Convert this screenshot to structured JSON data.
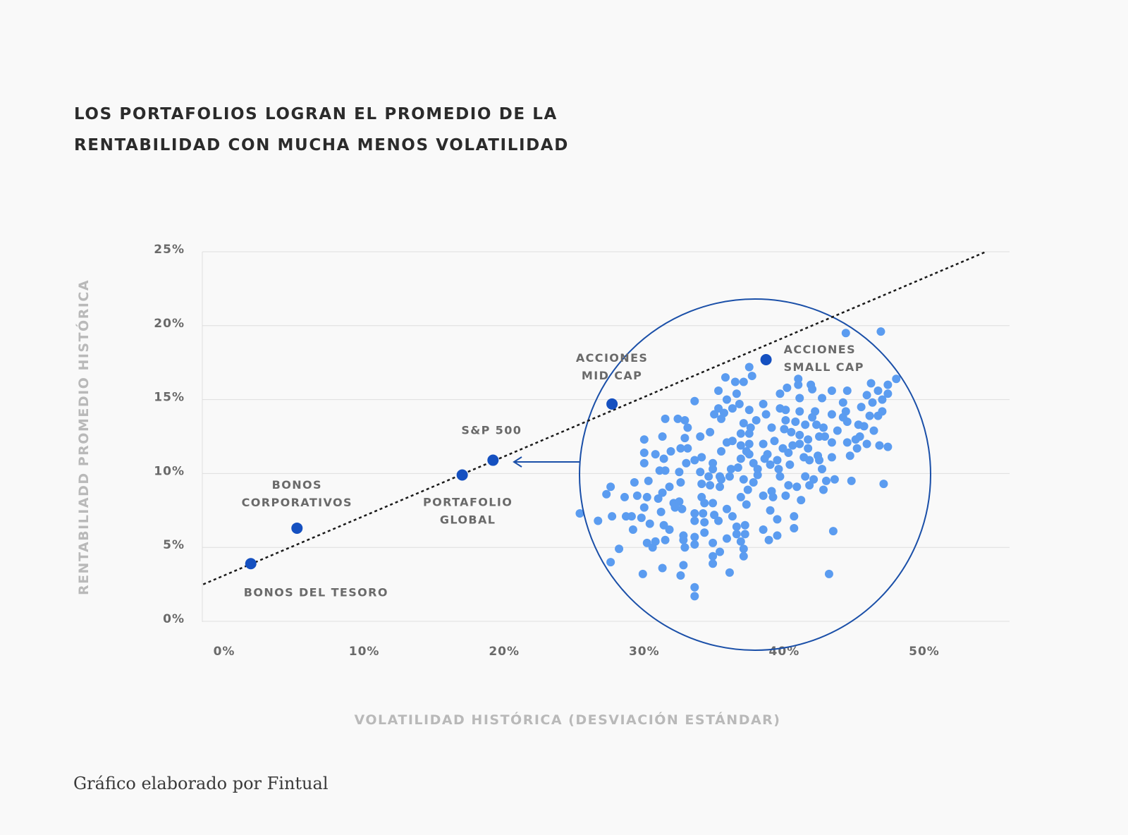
{
  "title": {
    "line1": "LOS PORTAFOLIOS LOGRAN EL PROMEDIO DE LA",
    "line2": "RENTABILIDAD CON MUCHA MENOS VOLATILIDAD"
  },
  "footer": "Gráfico elaborado por Fintual",
  "colors": {
    "background": "#f9f9f9",
    "highlight_points": "#1550c0",
    "cloud_points": "#5b9cf0",
    "circle": "#1a4fa8",
    "trend_line": "#1a1a1a",
    "grid": "#dedede"
  },
  "chart_data": {
    "type": "scatter",
    "title": "LOS PORTAFOLIOS LOGRAN EL PROMEDIO DE LA RENTABILIDAD CON MUCHA MENOS VOLATILIDAD",
    "xlabel": "VOLATILIDAD HISTÓRICA (DESVIACIÓN ESTÁNDAR)",
    "ylabel": "RENTABILIADD PROMEDIO HISTÓRICA",
    "xlim": [
      0,
      50
    ],
    "ylim": [
      0,
      25
    ],
    "x_ticks": [
      "0%",
      "10%",
      "20%",
      "30%",
      "40%",
      "50%"
    ],
    "y_ticks": [
      "0%",
      "5%",
      "10%",
      "15%",
      "20%",
      "25%"
    ],
    "grid": "horizontal",
    "labeled_points": [
      {
        "label_lines": [
          "BONOS DEL TESORO"
        ],
        "x": 1.9,
        "y": 3.9
      },
      {
        "label_lines": [
          "BONOS",
          "CORPORATIVOS"
        ],
        "x": 5.2,
        "y": 6.3
      },
      {
        "label_lines": [
          "PORTAFOLIO",
          "GLOBAL"
        ],
        "x": 17.0,
        "y": 9.9
      },
      {
        "label_lines": [
          "S&P 500"
        ],
        "x": 19.2,
        "y": 10.9
      },
      {
        "label_lines": [
          "ACCIONES",
          "MID CAP"
        ],
        "x": 27.7,
        "y": 14.7
      },
      {
        "label_lines": [
          "ACCIONES",
          "SMALL CAP"
        ],
        "x": 38.7,
        "y": 17.7
      }
    ],
    "trend_line": [
      [
        -1.5,
        2.5
      ],
      [
        54.4,
        25.0
      ]
    ],
    "cloud_points": [
      [
        44.4,
        19.5
      ],
      [
        46.9,
        19.6
      ],
      [
        37.5,
        17.2
      ],
      [
        35.8,
        16.5
      ],
      [
        36.5,
        16.2
      ],
      [
        37.1,
        16.2
      ],
      [
        37.7,
        16.6
      ],
      [
        41.0,
        16.4
      ],
      [
        48.0,
        16.4
      ],
      [
        46.2,
        16.1
      ],
      [
        47.4,
        16.0
      ],
      [
        40.2,
        15.8
      ],
      [
        41.0,
        16.0
      ],
      [
        41.9,
        16.0
      ],
      [
        42.0,
        15.7
      ],
      [
        35.3,
        15.6
      ],
      [
        43.4,
        15.6
      ],
      [
        44.5,
        15.6
      ],
      [
        46.7,
        15.6
      ],
      [
        47.4,
        15.4
      ],
      [
        39.7,
        15.4
      ],
      [
        36.6,
        15.4
      ],
      [
        41.1,
        15.1
      ],
      [
        42.7,
        15.1
      ],
      [
        45.9,
        15.3
      ],
      [
        33.6,
        14.9
      ],
      [
        35.9,
        15.0
      ],
      [
        44.2,
        14.8
      ],
      [
        46.3,
        14.8
      ],
      [
        47.0,
        15.0
      ],
      [
        36.8,
        14.7
      ],
      [
        38.5,
        14.7
      ],
      [
        36.3,
        14.4
      ],
      [
        37.5,
        14.3
      ],
      [
        39.7,
        14.4
      ],
      [
        40.1,
        14.3
      ],
      [
        41.1,
        14.2
      ],
      [
        42.2,
        14.2
      ],
      [
        45.5,
        14.5
      ],
      [
        47.0,
        14.2
      ],
      [
        35.3,
        14.4
      ],
      [
        35.0,
        14.0
      ],
      [
        35.7,
        14.1
      ],
      [
        35.5,
        13.7
      ],
      [
        38.7,
        14.0
      ],
      [
        43.4,
        14.0
      ],
      [
        44.4,
        14.2
      ],
      [
        44.2,
        13.8
      ],
      [
        46.1,
        13.9
      ],
      [
        46.7,
        13.9
      ],
      [
        42.0,
        13.8
      ],
      [
        31.5,
        13.7
      ],
      [
        32.4,
        13.7
      ],
      [
        32.9,
        13.6
      ],
      [
        33.1,
        13.1
      ],
      [
        38.0,
        13.6
      ],
      [
        40.1,
        13.6
      ],
      [
        40.8,
        13.5
      ],
      [
        44.5,
        13.5
      ],
      [
        37.1,
        13.4
      ],
      [
        41.5,
        13.3
      ],
      [
        42.3,
        13.3
      ],
      [
        42.8,
        13.1
      ],
      [
        45.3,
        13.3
      ],
      [
        45.7,
        13.2
      ],
      [
        37.6,
        13.1
      ],
      [
        39.1,
        13.1
      ],
      [
        40.0,
        13.0
      ],
      [
        43.8,
        12.9
      ],
      [
        46.4,
        12.9
      ],
      [
        34.7,
        12.8
      ],
      [
        36.9,
        12.7
      ],
      [
        37.5,
        12.7
      ],
      [
        40.5,
        12.8
      ],
      [
        41.1,
        12.6
      ],
      [
        42.5,
        12.5
      ],
      [
        42.9,
        12.5
      ],
      [
        34.0,
        12.5
      ],
      [
        31.3,
        12.5
      ],
      [
        32.9,
        12.4
      ],
      [
        30.0,
        12.3
      ],
      [
        41.7,
        12.3
      ],
      [
        45.4,
        12.5
      ],
      [
        45.1,
        12.3
      ],
      [
        44.5,
        12.1
      ],
      [
        43.4,
        12.1
      ],
      [
        39.3,
        12.2
      ],
      [
        38.5,
        12.0
      ],
      [
        37.5,
        12.0
      ],
      [
        36.3,
        12.2
      ],
      [
        35.9,
        12.1
      ],
      [
        36.9,
        11.9
      ],
      [
        39.9,
        11.7
      ],
      [
        40.6,
        11.9
      ],
      [
        41.1,
        12.0
      ],
      [
        41.7,
        11.7
      ],
      [
        45.9,
        12.0
      ],
      [
        46.8,
        11.9
      ],
      [
        47.4,
        11.8
      ],
      [
        45.2,
        11.7
      ],
      [
        32.6,
        11.7
      ],
      [
        33.1,
        11.7
      ],
      [
        30.0,
        11.4
      ],
      [
        30.8,
        11.3
      ],
      [
        31.9,
        11.5
      ],
      [
        35.5,
        11.5
      ],
      [
        37.3,
        11.5
      ],
      [
        37.5,
        11.3
      ],
      [
        38.8,
        11.3
      ],
      [
        40.3,
        11.4
      ],
      [
        42.4,
        11.2
      ],
      [
        44.7,
        11.2
      ],
      [
        30.0,
        10.7
      ],
      [
        31.4,
        11.0
      ],
      [
        33.6,
        10.9
      ],
      [
        34.1,
        11.1
      ],
      [
        36.9,
        11.0
      ],
      [
        38.6,
        11.0
      ],
      [
        39.5,
        10.9
      ],
      [
        41.4,
        11.1
      ],
      [
        41.8,
        10.9
      ],
      [
        42.5,
        10.9
      ],
      [
        43.4,
        11.1
      ],
      [
        37.8,
        10.7
      ],
      [
        34.9,
        10.7
      ],
      [
        33.0,
        10.7
      ],
      [
        39.0,
        10.6
      ],
      [
        40.4,
        10.6
      ],
      [
        42.7,
        10.3
      ],
      [
        31.1,
        10.2
      ],
      [
        31.5,
        10.2
      ],
      [
        32.5,
        10.1
      ],
      [
        34.0,
        10.1
      ],
      [
        34.9,
        10.3
      ],
      [
        36.2,
        10.3
      ],
      [
        36.7,
        10.4
      ],
      [
        38.1,
        10.3
      ],
      [
        39.6,
        10.3
      ],
      [
        38.1,
        9.9
      ],
      [
        34.6,
        9.8
      ],
      [
        35.4,
        9.8
      ],
      [
        36.1,
        9.8
      ],
      [
        39.7,
        9.8
      ],
      [
        41.5,
        9.8
      ],
      [
        29.3,
        9.4
      ],
      [
        30.3,
        9.5
      ],
      [
        32.6,
        9.4
      ],
      [
        34.1,
        9.3
      ],
      [
        35.5,
        9.6
      ],
      [
        37.1,
        9.6
      ],
      [
        37.8,
        9.4
      ],
      [
        42.1,
        9.6
      ],
      [
        43.0,
        9.5
      ],
      [
        43.6,
        9.6
      ],
      [
        44.8,
        9.5
      ],
      [
        47.1,
        9.3
      ],
      [
        27.6,
        9.1
      ],
      [
        27.3,
        8.6
      ],
      [
        31.8,
        9.1
      ],
      [
        34.7,
        9.2
      ],
      [
        35.4,
        9.1
      ],
      [
        40.3,
        9.2
      ],
      [
        40.9,
        9.1
      ],
      [
        41.8,
        9.2
      ],
      [
        42.8,
        8.9
      ],
      [
        37.4,
        8.9
      ],
      [
        28.6,
        8.4
      ],
      [
        29.5,
        8.5
      ],
      [
        30.2,
        8.4
      ],
      [
        31.3,
        8.7
      ],
      [
        31.0,
        8.3
      ],
      [
        34.1,
        8.4
      ],
      [
        34.3,
        8.0
      ],
      [
        34.9,
        8.0
      ],
      [
        36.9,
        8.4
      ],
      [
        38.5,
        8.5
      ],
      [
        39.1,
        8.8
      ],
      [
        39.2,
        8.4
      ],
      [
        40.1,
        8.5
      ],
      [
        41.2,
        8.2
      ],
      [
        30.0,
        7.7
      ],
      [
        32.1,
        8.0
      ],
      [
        32.5,
        8.1
      ],
      [
        32.2,
        7.7
      ],
      [
        32.7,
        7.6
      ],
      [
        37.3,
        7.9
      ],
      [
        25.4,
        7.3
      ],
      [
        26.7,
        6.8
      ],
      [
        27.7,
        7.1
      ],
      [
        28.7,
        7.1
      ],
      [
        29.1,
        7.1
      ],
      [
        29.8,
        7.0
      ],
      [
        31.2,
        7.4
      ],
      [
        30.4,
        6.6
      ],
      [
        33.6,
        7.3
      ],
      [
        34.2,
        7.3
      ],
      [
        35.0,
        7.2
      ],
      [
        35.3,
        6.8
      ],
      [
        33.6,
        6.8
      ],
      [
        34.3,
        6.7
      ],
      [
        35.9,
        7.6
      ],
      [
        36.3,
        7.1
      ],
      [
        39.0,
        7.5
      ],
      [
        39.5,
        6.9
      ],
      [
        40.7,
        7.1
      ],
      [
        29.2,
        6.2
      ],
      [
        31.4,
        6.5
      ],
      [
        31.8,
        6.2
      ],
      [
        36.6,
        6.4
      ],
      [
        37.2,
        6.5
      ],
      [
        38.5,
        6.2
      ],
      [
        40.7,
        6.3
      ],
      [
        43.5,
        6.1
      ],
      [
        34.3,
        6.0
      ],
      [
        37.2,
        5.9
      ],
      [
        36.6,
        5.9
      ],
      [
        35.9,
        5.6
      ],
      [
        39.5,
        5.8
      ],
      [
        38.9,
        5.5
      ],
      [
        32.8,
        5.8
      ],
      [
        33.6,
        5.7
      ],
      [
        31.5,
        5.5
      ],
      [
        30.2,
        5.3
      ],
      [
        30.8,
        5.4
      ],
      [
        30.6,
        5.0
      ],
      [
        32.8,
        5.5
      ],
      [
        32.9,
        5.0
      ],
      [
        33.6,
        5.2
      ],
      [
        34.9,
        5.3
      ],
      [
        36.9,
        5.4
      ],
      [
        37.1,
        4.9
      ],
      [
        28.2,
        4.9
      ],
      [
        35.4,
        4.7
      ],
      [
        37.1,
        4.4
      ],
      [
        34.9,
        4.4
      ],
      [
        34.9,
        3.9
      ],
      [
        27.6,
        4.0
      ],
      [
        31.3,
        3.6
      ],
      [
        29.9,
        3.2
      ],
      [
        32.8,
        3.8
      ],
      [
        32.6,
        3.1
      ],
      [
        36.1,
        3.3
      ],
      [
        43.2,
        3.2
      ],
      [
        33.6,
        2.3
      ],
      [
        33.6,
        1.7
      ]
    ]
  }
}
